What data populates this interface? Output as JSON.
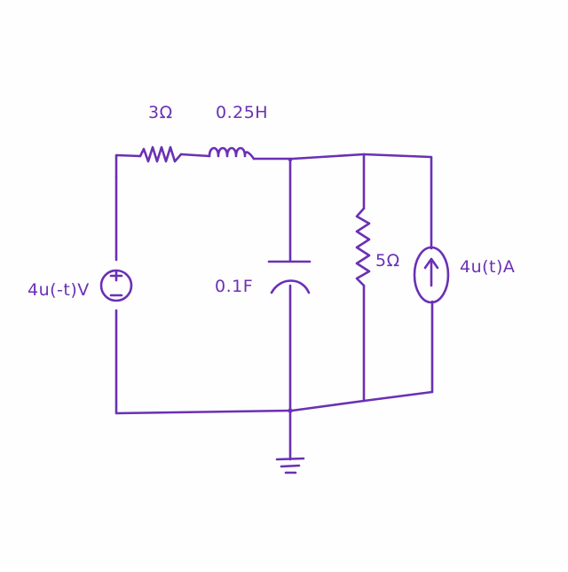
{
  "colors": {
    "ink": "#6a30b5",
    "paper": "#fefefe"
  },
  "components": {
    "resistor_series": {
      "label": "3Ω"
    },
    "inductor": {
      "label": "0.25H"
    },
    "capacitor": {
      "label": "0.1F"
    },
    "resistor_shunt": {
      "label": "5Ω"
    },
    "voltage_source": {
      "label": "4u(-t)V",
      "plus": "+",
      "minus": "−"
    },
    "current_source": {
      "label": "4u(t)A"
    }
  }
}
